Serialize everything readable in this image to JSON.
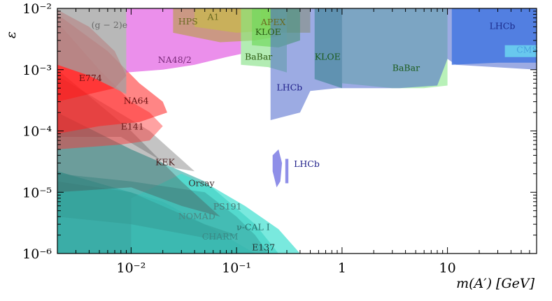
{
  "chart_data": {
    "type": "area",
    "title": "",
    "xlabel": "m(A′) [GeV]",
    "ylabel": "ε",
    "xscale": "log",
    "yscale": "log",
    "xlim": [
      0.002,
      70
    ],
    "ylim": [
      1e-06,
      0.01
    ],
    "grid": false,
    "x_ticks": [
      {
        "value": 0.01,
        "label": "10⁻²"
      },
      {
        "value": 0.1,
        "label": "10⁻¹"
      },
      {
        "value": 1,
        "label": "1"
      },
      {
        "value": 10,
        "label": "10"
      }
    ],
    "y_ticks": [
      {
        "value": 0.01,
        "label": "10⁻²"
      },
      {
        "value": 0.001,
        "label": "10⁻³"
      },
      {
        "value": 0.0001,
        "label": "10⁻⁴"
      },
      {
        "value": 1e-05,
        "label": "10⁻⁵"
      },
      {
        "value": 1e-06,
        "label": "10⁻⁶"
      }
    ],
    "series": [
      {
        "name": "E137",
        "color": "#20b2aa",
        "opacity": 0.75,
        "polygon": [
          [
            0.002,
            1e-06
          ],
          [
            0.002,
            2.2e-05
          ],
          [
            0.02,
            7e-06
          ],
          [
            0.06,
            2.5e-06
          ],
          [
            0.1,
            1.5e-06
          ],
          [
            0.15,
            1e-06
          ]
        ],
        "label": {
          "text": "E137",
          "at": [
            0.14,
            1.12e-06
          ],
          "color": "#223333"
        }
      },
      {
        "name": "CHARM",
        "color": "#2aa6a0",
        "opacity": 0.6,
        "polygon": [
          [
            0.002,
            1e-06
          ],
          [
            0.002,
            0.0002
          ],
          [
            0.01,
            5e-05
          ],
          [
            0.05,
            1.5e-05
          ],
          [
            0.15,
            3e-06
          ],
          [
            0.25,
            1e-06
          ]
        ],
        "label": {
          "text": "CHARM",
          "at": [
            0.047,
            1.7e-06
          ],
          "color": "#3a8a86"
        }
      },
      {
        "name": "ν-CAL I",
        "color": "#40e0d0",
        "opacity": 0.7,
        "polygon": [
          [
            0.01,
            1e-06
          ],
          [
            0.01,
            8e-06
          ],
          [
            0.03,
            2e-05
          ],
          [
            0.06,
            1.2e-05
          ],
          [
            0.12,
            6e-06
          ],
          [
            0.25,
            2.5e-06
          ],
          [
            0.4,
            1e-06
          ]
        ],
        "label": {
          "text": "ν-CAL I",
          "at": [
            0.1,
            2.4e-06
          ],
          "color": "#2a6f6b"
        }
      },
      {
        "name": "NOMAD",
        "color": "#2e8b83",
        "opacity": 0.55,
        "polygon": [
          [
            0.002,
            4e-06
          ],
          [
            0.002,
            1.5e-05
          ],
          [
            0.01,
            1e-05
          ],
          [
            0.05,
            3e-06
          ],
          [
            0.1,
            2e-06
          ],
          [
            0.06,
            1.7e-06
          ],
          [
            0.01,
            3e-06
          ]
        ],
        "label": {
          "text": "NOMAD",
          "at": [
            0.028,
            3.6e-06
          ],
          "color": "#4a8883"
        }
      },
      {
        "name": "PS191",
        "color": "#3aa8a4",
        "opacity": 0.6,
        "polygon": [
          [
            0.002,
            1e-06
          ],
          [
            0.002,
            2e-05
          ],
          [
            0.01,
            1.5e-05
          ],
          [
            0.05,
            1e-05
          ],
          [
            0.1,
            4e-06
          ],
          [
            0.15,
            2e-06
          ],
          [
            0.2,
            1e-06
          ]
        ],
        "label": {
          "text": "PS191",
          "at": [
            0.06,
            5.2e-06
          ],
          "color": "#4a7a77"
        }
      },
      {
        "name": "Orsay",
        "color": "#4a4a4a",
        "opacity": 0.35,
        "polygon": [
          [
            0.002,
            1e-05
          ],
          [
            0.002,
            0.001
          ],
          [
            0.01,
            0.0001
          ],
          [
            0.03,
            1.5e-05
          ],
          [
            0.07,
            4e-06
          ],
          [
            0.03,
            6e-06
          ],
          [
            0.01,
            1.2e-05
          ]
        ],
        "label": {
          "text": "Orsay",
          "at": [
            0.035,
            1.25e-05
          ],
          "color": "#3a2a2a"
        }
      },
      {
        "name": "KEK",
        "color": "#555555",
        "opacity": 0.35,
        "polygon": [
          [
            0.002,
            8e-05
          ],
          [
            0.002,
            0.0008
          ],
          [
            0.015,
            0.0001
          ],
          [
            0.04,
            2.2e-05
          ],
          [
            0.025,
            2.5e-05
          ],
          [
            0.008,
            8e-05
          ]
        ],
        "label": {
          "text": "KEK",
          "at": [
            0.017,
            2.75e-05
          ],
          "color": "#4a2020"
        }
      },
      {
        "name": "E141",
        "color": "#ff3030",
        "opacity": 0.45,
        "polygon": [
          [
            0.002,
            5e-05
          ],
          [
            0.002,
            0.006
          ],
          [
            0.005,
            0.001
          ],
          [
            0.01,
            0.0003
          ],
          [
            0.015,
            0.0002
          ],
          [
            0.02,
            0.00012
          ],
          [
            0.015,
            7e-05
          ],
          [
            0.008,
            6e-05
          ]
        ],
        "label": {
          "text": "E141",
          "at": [
            0.008,
            0.000105
          ],
          "color": "#6a1a1a"
        }
      },
      {
        "name": "NA64",
        "color": "#ff2020",
        "opacity": 0.55,
        "polygon": [
          [
            0.002,
            9e-05
          ],
          [
            0.002,
            0.008
          ],
          [
            0.006,
            0.002
          ],
          [
            0.012,
            0.0006
          ],
          [
            0.02,
            0.0003
          ],
          [
            0.022,
            0.0002
          ],
          [
            0.012,
            0.00014
          ],
          [
            0.005,
            0.00012
          ]
        ],
        "label": {
          "text": "NA64",
          "at": [
            0.0085,
            0.00028
          ],
          "color": "#6a1010"
        }
      },
      {
        "name": "E774",
        "color": "#ff1a1a",
        "opacity": 0.55,
        "polygon": [
          [
            0.002,
            0.0003
          ],
          [
            0.002,
            0.0095
          ],
          [
            0.004,
            0.005
          ],
          [
            0.007,
            0.002
          ],
          [
            0.009,
            0.0008
          ],
          [
            0.007,
            0.0005
          ],
          [
            0.004,
            0.0004
          ]
        ],
        "label": {
          "text": "E774",
          "at": [
            0.0032,
            0.00065
          ],
          "color": "#6a1010"
        }
      },
      {
        "name": "(g − 2)e",
        "color": "#a0a0a0",
        "opacity": 0.75,
        "polygon": [
          [
            0.002,
            0.01
          ],
          [
            0.009,
            0.01
          ],
          [
            0.009,
            0.0004
          ],
          [
            0.004,
            0.0008
          ],
          [
            0.002,
            0.0012
          ]
        ],
        "label": {
          "text": "(g − 2)e",
          "at": [
            0.0042,
            0.0048
          ],
          "color": "#6a6a6a"
        }
      },
      {
        "name": "NA48/2",
        "color": "#dd44dd",
        "opacity": 0.6,
        "polygon": [
          [
            0.009,
            0.01
          ],
          [
            0.009,
            0.0009
          ],
          [
            0.02,
            0.001
          ],
          [
            0.04,
            0.0012
          ],
          [
            0.08,
            0.0016
          ],
          [
            0.11,
            0.0018
          ],
          [
            0.11,
            0.01
          ]
        ],
        "label": {
          "text": "NA48/2",
          "at": [
            0.018,
            0.0013
          ],
          "color": "#7a2a7a"
        }
      },
      {
        "name": "HPS",
        "color": "#b0a030",
        "opacity": 0.55,
        "polygon": [
          [
            0.025,
            0.01
          ],
          [
            0.025,
            0.004
          ],
          [
            0.07,
            0.0028
          ],
          [
            0.15,
            0.003
          ],
          [
            0.25,
            0.0035
          ],
          [
            0.25,
            0.01
          ]
        ],
        "label": {
          "text": "HPS",
          "at": [
            0.028,
            0.0055
          ],
          "color": "#6a6a20"
        }
      },
      {
        "name": "A1",
        "color": "#c8c040",
        "opacity": 0.6,
        "polygon": [
          [
            0.04,
            0.01
          ],
          [
            0.04,
            0.005
          ],
          [
            0.1,
            0.004
          ],
          [
            0.3,
            0.0045
          ],
          [
            0.3,
            0.01
          ]
        ],
        "label": {
          "text": "A1",
          "at": [
            0.053,
            0.0065
          ],
          "color": "#6a6a20"
        }
      },
      {
        "name": "APEX",
        "color": "#d0c020",
        "opacity": 0.6,
        "polygon": [
          [
            0.17,
            0.01
          ],
          [
            0.17,
            0.004
          ],
          [
            0.5,
            0.004
          ],
          [
            0.5,
            0.01
          ]
        ],
        "label": {
          "text": "APEX",
          "at": [
            0.17,
            0.0053
          ],
          "color": "#6a6a20"
        }
      },
      {
        "name": "KLOE (low)",
        "color": "#55cc22",
        "opacity": 0.65,
        "polygon": [
          [
            0.14,
            0.01
          ],
          [
            0.14,
            0.0025
          ],
          [
            0.25,
            0.0023
          ],
          [
            0.4,
            0.003
          ],
          [
            0.4,
            0.01
          ]
        ],
        "label": {
          "text": "KLOE",
          "at": [
            0.15,
            0.0037
          ],
          "color": "#2a5a10"
        }
      },
      {
        "name": "BaBar (low)",
        "color": "#80e080",
        "opacity": 0.6,
        "polygon": [
          [
            0.11,
            0.01
          ],
          [
            0.11,
            0.0012
          ],
          [
            0.2,
            0.0011
          ],
          [
            0.3,
            0.0009
          ],
          [
            0.3,
            0.01
          ]
        ],
        "label": {
          "text": "BaBar",
          "at": [
            0.12,
            0.00145
          ],
          "color": "#2a5a10"
        }
      },
      {
        "name": "KLOE (mid)",
        "color": "#33aa55",
        "opacity": 0.65,
        "polygon": [
          [
            0.55,
            0.01
          ],
          [
            0.55,
            0.0007
          ],
          [
            1.0,
            0.0005
          ],
          [
            1.0,
            0.01
          ]
        ],
        "label": {
          "text": "KLOE",
          "at": [
            0.55,
            0.00145
          ],
          "color": "#1a5a1a"
        }
      },
      {
        "name": "BaBar",
        "color": "#88e888",
        "opacity": 0.6,
        "polygon": [
          [
            1.0,
            0.01
          ],
          [
            1.0,
            0.0006
          ],
          [
            3.0,
            0.0005
          ],
          [
            6.0,
            0.0005
          ],
          [
            10.0,
            0.00055
          ],
          [
            10.0,
            0.01
          ]
        ],
        "label": {
          "text": "BaBar",
          "at": [
            3.0,
            0.00095
          ],
          "color": "#1a5a1a"
        }
      },
      {
        "name": "LHCb",
        "color": "#4a66cc",
        "opacity": 0.55,
        "polygon": [
          [
            0.21,
            0.01
          ],
          [
            0.21,
            0.00015
          ],
          [
            0.4,
            0.0002
          ],
          [
            0.5,
            0.00045
          ],
          [
            0.9,
            0.0005
          ],
          [
            2,
            0.0005
          ],
          [
            3.5,
            0.0005
          ],
          [
            8,
            0.00055
          ],
          [
            10,
            0.0015
          ],
          [
            12,
            0.0012
          ],
          [
            70,
            0.001
          ],
          [
            70,
            0.01
          ]
        ],
        "label": {
          "text": "LHCb",
          "at": [
            0.24,
            0.00046
          ],
          "color": "#20208a"
        }
      },
      {
        "name": "LHCb (high mass)",
        "color": "#4a7ae0",
        "opacity": 0.9,
        "polygon": [
          [
            11,
            0.01
          ],
          [
            11,
            0.0012
          ],
          [
            30,
            0.0013
          ],
          [
            70,
            0.0013
          ],
          [
            70,
            0.01
          ]
        ],
        "label": {
          "text": "LHCb",
          "at": [
            25,
            0.0046
          ],
          "color": "#1a2a8a"
        }
      },
      {
        "name": "CMS",
        "color": "#6ad0f0",
        "opacity": 0.9,
        "polygon": [
          [
            35,
            0.0025
          ],
          [
            35,
            0.0016
          ],
          [
            70,
            0.0016
          ],
          [
            70,
            0.0025
          ]
        ],
        "label": {
          "text": "CMS",
          "at": [
            45,
            0.0019
          ],
          "color": "#4aa0e0"
        }
      },
      {
        "name": "LHCb (island)",
        "color": "#6a6ae0",
        "opacity": 0.75,
        "polygon": [
          [
            0.22,
            4e-05
          ],
          [
            0.22,
            2.2e-05
          ],
          [
            0.24,
            1.2e-05
          ],
          [
            0.26,
            1.5e-05
          ],
          [
            0.27,
            3e-05
          ],
          [
            0.25,
            5e-05
          ]
        ],
        "label": {
          "text": "LHCb",
          "at": [
            0.35,
            2.6e-05
          ],
          "color": "#20208a"
        }
      },
      {
        "name": "LHCb (island 2)",
        "color": "#6a6ae0",
        "opacity": 0.75,
        "polygon": [
          [
            0.29,
            3.5e-05
          ],
          [
            0.29,
            1.4e-05
          ],
          [
            0.31,
            1.4e-05
          ],
          [
            0.31,
            3.5e-05
          ]
        ],
        "label": null
      }
    ]
  }
}
